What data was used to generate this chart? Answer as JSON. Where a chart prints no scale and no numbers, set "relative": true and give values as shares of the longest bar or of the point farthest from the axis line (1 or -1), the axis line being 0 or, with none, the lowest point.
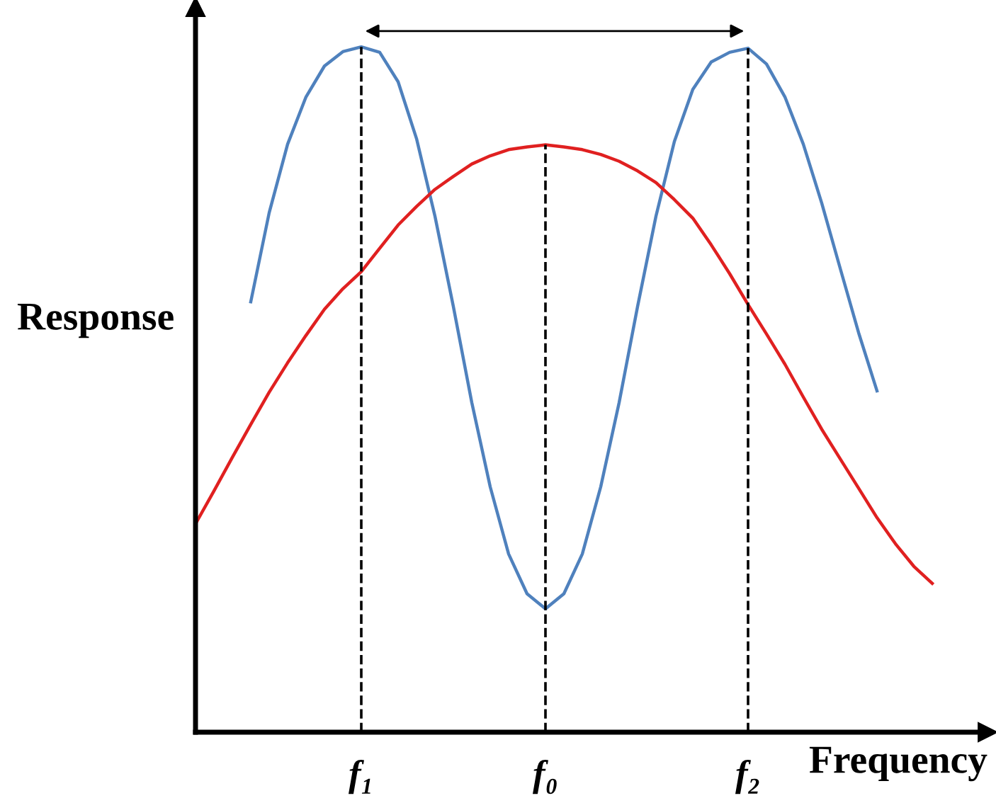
{
  "chart_data": {
    "type": "line",
    "relative": true,
    "xlabel": "Frequency",
    "ylabel": "Response",
    "categories": [
      null,
      null,
      null,
      null,
      null,
      null,
      null,
      null,
      null,
      "f₁",
      null,
      null,
      null,
      null,
      null,
      null,
      null,
      null,
      null,
      "f₀",
      null,
      null,
      null,
      null,
      null,
      null,
      null,
      null,
      null,
      null,
      "f₂",
      null,
      null,
      null,
      null,
      null,
      null,
      null,
      null,
      null,
      null,
      null,
      null,
      null
    ],
    "grid": false,
    "legend": false,
    "marker": "none",
    "line_style": "solid",
    "series": [
      {
        "color": "#4f81bd",
        "values": [
          null,
          null,
          null,
          0.628,
          0.758,
          0.858,
          0.927,
          0.972,
          0.993,
          1,
          0.992,
          0.949,
          0.866,
          0.753,
          0.621,
          0.481,
          0.358,
          0.26,
          0.202,
          0.18,
          0.202,
          0.26,
          0.358,
          0.481,
          0.621,
          0.753,
          0.862,
          0.938,
          0.978,
          0.992,
          0.998,
          0.975,
          0.927,
          0.858,
          0.772,
          0.677,
          0.583,
          0.498,
          null,
          null,
          null,
          null,
          null,
          null
        ]
      },
      {
        "color": "#e02020",
        "values": [
          0.304,
          0.352,
          0.401,
          0.449,
          0.496,
          0.539,
          0.579,
          0.617,
          0.647,
          0.672,
          0.706,
          0.74,
          0.767,
          0.792,
          0.811,
          0.829,
          0.841,
          0.85,
          0.854,
          0.857,
          0.854,
          0.85,
          0.843,
          0.833,
          0.819,
          0.802,
          0.777,
          0.75,
          0.711,
          0.669,
          0.624,
          0.581,
          0.537,
          0.489,
          0.442,
          0.399,
          0.356,
          0.313,
          0.275,
          0.242,
          0.217,
          null,
          null,
          null
        ]
      }
    ],
    "ref_lines": [
      {
        "axis": "x",
        "value": "f₁",
        "color": "#000000",
        "line_style": "dashed"
      },
      {
        "axis": "x",
        "value": "f₀",
        "color": "#000000",
        "line_style": "dashed"
      },
      {
        "axis": "x",
        "value": "f₂",
        "color": "#000000",
        "line_style": "dashed"
      }
    ]
  }
}
